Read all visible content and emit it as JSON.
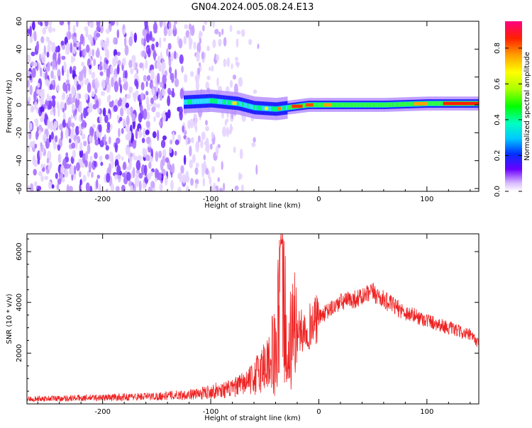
{
  "figure": {
    "title": "GN04.2024.005.08.24.E13"
  },
  "chart_data": [
    {
      "type": "heatmap",
      "xlabel": "Height of straight line (km)",
      "ylabel": "Frequency (Hz)",
      "xlim": [
        -270,
        148
      ],
      "ylim": [
        -62,
        60
      ],
      "xticks": [
        -200,
        -100,
        0,
        100
      ],
      "yticks": [
        -60,
        -40,
        -20,
        0,
        20,
        40,
        60
      ],
      "colorbar": {
        "label": "Normalized spectral amplitude",
        "range": [
          0.0,
          0.95
        ],
        "ticks": [
          0.0,
          0.2,
          0.4,
          0.6,
          0.8
        ],
        "colormap": "rainbow (white-violet-blue-cyan-green-yellow-orange-red-magenta)"
      },
      "features": [
        {
          "region": "noise",
          "x_range": [
            -270,
            -75
          ],
          "y_range": [
            -62,
            60
          ],
          "amplitude": "0.0-0.15"
        },
        {
          "region": "signal band",
          "x_range": [
            -125,
            148
          ],
          "y_center": 0,
          "bandwidth_hz": 8,
          "amplitude_peak": 0.95
        }
      ],
      "band_centerline": [
        {
          "x": -125,
          "y": 2
        },
        {
          "x": -100,
          "y": 3
        },
        {
          "x": -75,
          "y": 1
        },
        {
          "x": -60,
          "y": -2
        },
        {
          "x": -40,
          "y": -3
        },
        {
          "x": -30,
          "y": -2
        },
        {
          "x": -10,
          "y": 0
        },
        {
          "x": 20,
          "y": 0
        },
        {
          "x": 60,
          "y": 0
        },
        {
          "x": 100,
          "y": 1
        },
        {
          "x": 148,
          "y": 1
        }
      ]
    },
    {
      "type": "line",
      "xlabel": "Height of straight line (km)",
      "ylabel": "SNR (10 * v/v)",
      "xlim": [
        -270,
        148
      ],
      "ylim": [
        0,
        6700
      ],
      "xticks": [
        -200,
        -100,
        0,
        100
      ],
      "yticks": [
        2000,
        4000,
        6000
      ],
      "color": "#ee2222",
      "series": [
        {
          "x": [
            -270,
            -200,
            -150,
            -110,
            -100,
            -80,
            -60,
            -45,
            -38,
            -35,
            -30,
            -25,
            -20,
            -10,
            0,
            20,
            40,
            50,
            60,
            80,
            100,
            120,
            140,
            148
          ],
          "values": [
            200,
            250,
            300,
            400,
            500,
            600,
            1000,
            1800,
            3000,
            6700,
            3200,
            3600,
            2800,
            3000,
            3400,
            4000,
            4200,
            4400,
            4100,
            3600,
            3300,
            3000,
            2700,
            2400
          ]
        }
      ]
    }
  ]
}
